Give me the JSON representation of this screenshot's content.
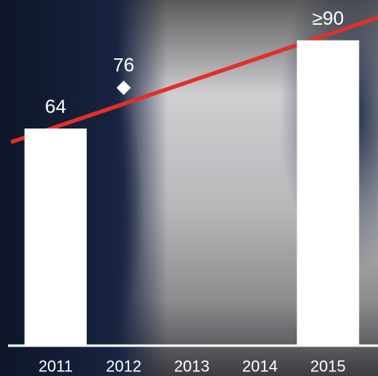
{
  "chart_data": {
    "type": "bar",
    "categories": [
      "2011",
      "2012",
      "2013",
      "2014",
      "2015"
    ],
    "series": [
      {
        "type": "bar",
        "color": "#ffffff",
        "values": [
          64,
          null,
          null,
          null,
          90
        ],
        "value_labels": [
          "64",
          null,
          null,
          null,
          "≥90"
        ]
      },
      {
        "type": "diamond",
        "color": "#ffffff",
        "values": [
          null,
          76,
          null,
          null,
          null
        ]
      }
    ],
    "ylim": [
      0,
      100
    ]
  }
}
